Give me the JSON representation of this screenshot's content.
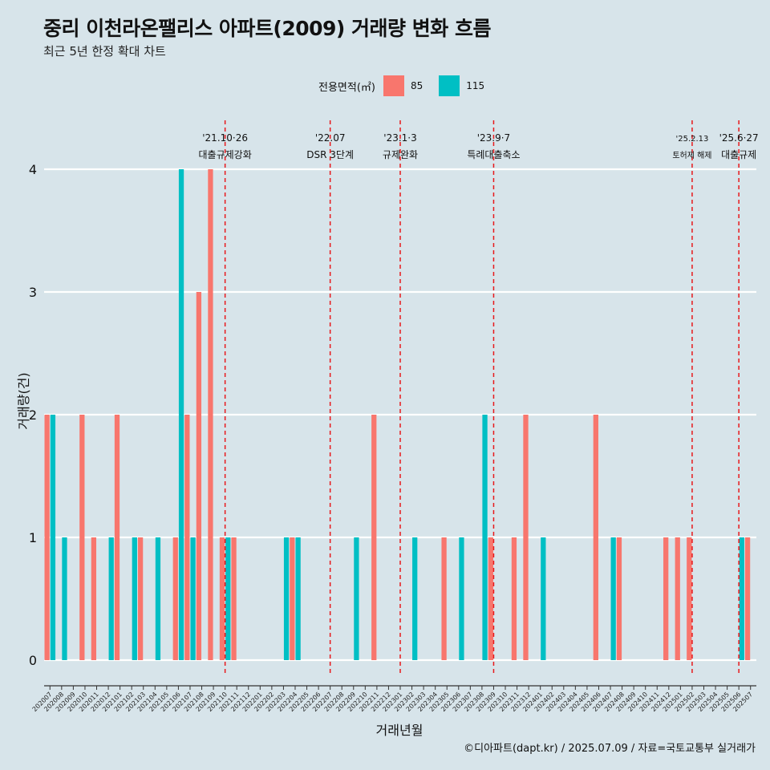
{
  "title": "중리 이천라온팰리스 아파트(2009) 거래량 변화 흐름",
  "subtitle": "최근 5년 한정 확대 차트",
  "legend": {
    "title": "전용면적(㎡)",
    "items": [
      {
        "label": "85",
        "color": "#f8766d"
      },
      {
        "label": "115",
        "color": "#00bfc4"
      }
    ]
  },
  "caption": "©디아파트(dapt.kr) / 2025.07.09 / 자료=국토교통부 실거래가",
  "chart_data": {
    "type": "bar",
    "title": "중리 이천라온팰리스 아파트(2009) 거래량 변화 흐름",
    "subtitle": "최근 5년 한정 확대 차트",
    "xlabel": "거래년월",
    "ylabel": "거래량(건)",
    "ylim": [
      0,
      4
    ],
    "yticks": [
      0,
      1,
      2,
      3,
      4
    ],
    "grid": true,
    "legend_position": "top",
    "categories": [
      "202007",
      "202008",
      "202009",
      "202010",
      "202011",
      "202012",
      "202101",
      "202102",
      "202103",
      "202104",
      "202105",
      "202106",
      "202107",
      "202108",
      "202109",
      "202110",
      "202111",
      "202112",
      "202201",
      "202202",
      "202203",
      "202204",
      "202205",
      "202206",
      "202207",
      "202208",
      "202209",
      "202210",
      "202211",
      "202212",
      "202301",
      "202302",
      "202303",
      "202304",
      "202305",
      "202306",
      "202307",
      "202308",
      "202309",
      "202310",
      "202311",
      "202312",
      "202401",
      "202402",
      "202403",
      "202404",
      "202405",
      "202406",
      "202407",
      "202408",
      "202409",
      "202410",
      "202411",
      "202412",
      "202501",
      "202502",
      "202503",
      "202504",
      "202505",
      "202506",
      "202507"
    ],
    "series": [
      {
        "name": "85",
        "color": "#f8766d",
        "values": [
          2,
          0,
          0,
          2,
          1,
          0,
          2,
          0,
          1,
          0,
          0,
          1,
          2,
          3,
          4,
          1,
          1,
          0,
          0,
          0,
          0,
          1,
          0,
          0,
          0,
          0,
          0,
          0,
          2,
          0,
          0,
          0,
          0,
          0,
          1,
          0,
          0,
          0,
          1,
          0,
          1,
          2,
          0,
          0,
          0,
          0,
          0,
          2,
          0,
          1,
          0,
          0,
          0,
          1,
          1,
          1,
          0,
          0,
          0,
          0,
          1
        ]
      },
      {
        "name": "115",
        "color": "#00bfc4",
        "values": [
          2,
          1,
          0,
          0,
          0,
          1,
          0,
          1,
          0,
          1,
          0,
          4,
          1,
          0,
          0,
          1,
          0,
          0,
          0,
          0,
          1,
          1,
          0,
          0,
          0,
          0,
          1,
          0,
          0,
          0,
          0,
          1,
          0,
          0,
          0,
          1,
          0,
          2,
          0,
          0,
          0,
          0,
          1,
          0,
          0,
          0,
          0,
          0,
          1,
          0,
          0,
          0,
          0,
          0,
          0,
          0,
          0,
          0,
          0,
          1,
          0
        ]
      }
    ],
    "annotations": [
      {
        "x": "202110",
        "lines": [
          "'21.10·26",
          "대출규제강화"
        ]
      },
      {
        "x": "202207",
        "lines": [
          "'22.07",
          "DSR 3단계"
        ]
      },
      {
        "x": "202301",
        "lines": [
          "'23.1·3",
          "규제완화"
        ]
      },
      {
        "x": "202309",
        "lines": [
          "'23.9·7",
          "특례대출축소"
        ]
      },
      {
        "x": "202502",
        "lines": [
          "'25.2.13",
          "토허제 해제"
        ]
      },
      {
        "x": "202506",
        "lines": [
          "'25.6·27",
          "대출규제"
        ]
      }
    ]
  }
}
